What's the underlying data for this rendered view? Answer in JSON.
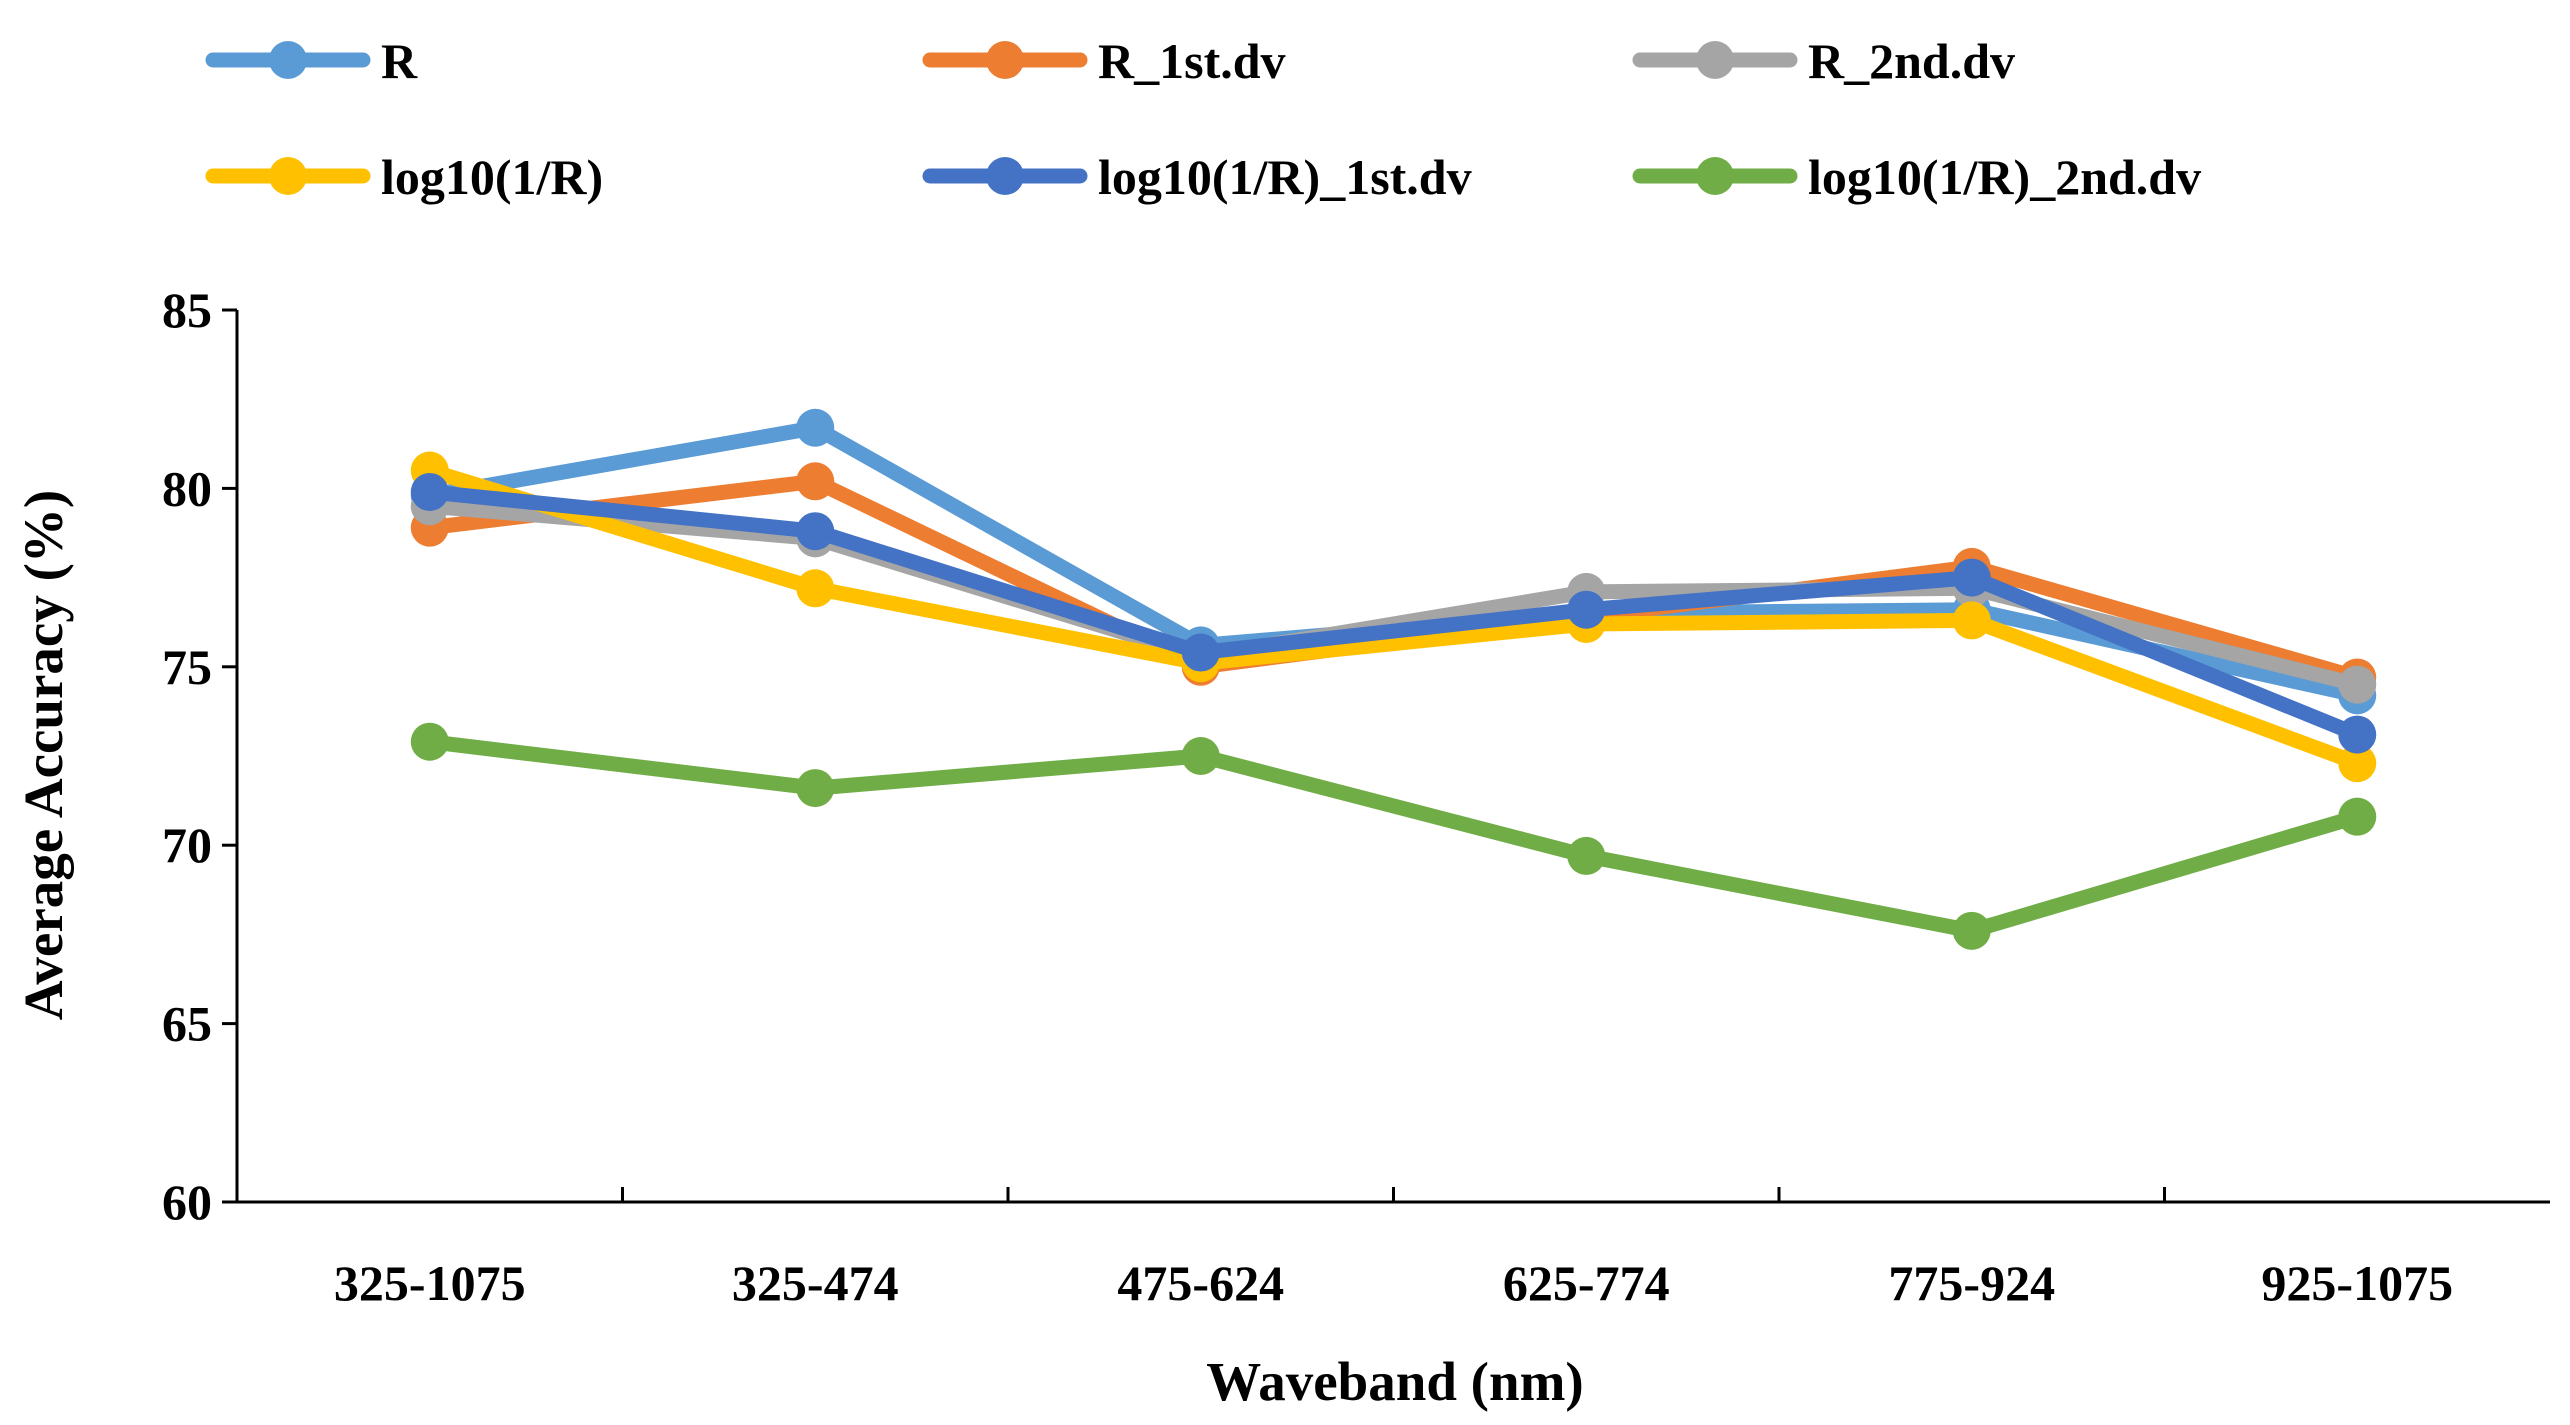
{
  "chart_data": {
    "type": "line",
    "title": "",
    "xlabel": "Waveband (nm)",
    "ylabel": "Average Accuracy (%)",
    "ylim": [
      60,
      85
    ],
    "yticks": [
      60,
      65,
      70,
      75,
      80,
      85
    ],
    "grid": false,
    "legend_position": "top",
    "categories": [
      "325-1075",
      "325-474",
      "475-624",
      "625-774",
      "775-924",
      "925-1075"
    ],
    "series": [
      {
        "name": "R",
        "color": "#5B9BD5",
        "values": [
          79.8,
          81.7,
          75.6,
          76.5,
          76.6,
          74.2
        ]
      },
      {
        "name": "R_1st.dv",
        "color": "#ED7D31",
        "values": [
          78.9,
          80.2,
          75.0,
          76.4,
          77.8,
          74.7
        ]
      },
      {
        "name": "R_2nd.dv",
        "color": "#A5A5A5",
        "values": [
          79.5,
          78.6,
          75.3,
          77.1,
          77.2,
          74.5
        ]
      },
      {
        "name": "log10(1/R)",
        "color": "#FFC000",
        "values": [
          80.5,
          77.2,
          75.1,
          76.2,
          76.3,
          72.3
        ]
      },
      {
        "name": "log10(1/R)_1st.dv",
        "color": "#4472C4",
        "values": [
          79.9,
          78.8,
          75.4,
          76.6,
          77.5,
          73.1
        ]
      },
      {
        "name": "log10(1/R)_2nd.dv",
        "color": "#70AD47",
        "values": [
          72.9,
          71.6,
          72.5,
          69.7,
          67.6,
          70.8
        ]
      }
    ]
  }
}
